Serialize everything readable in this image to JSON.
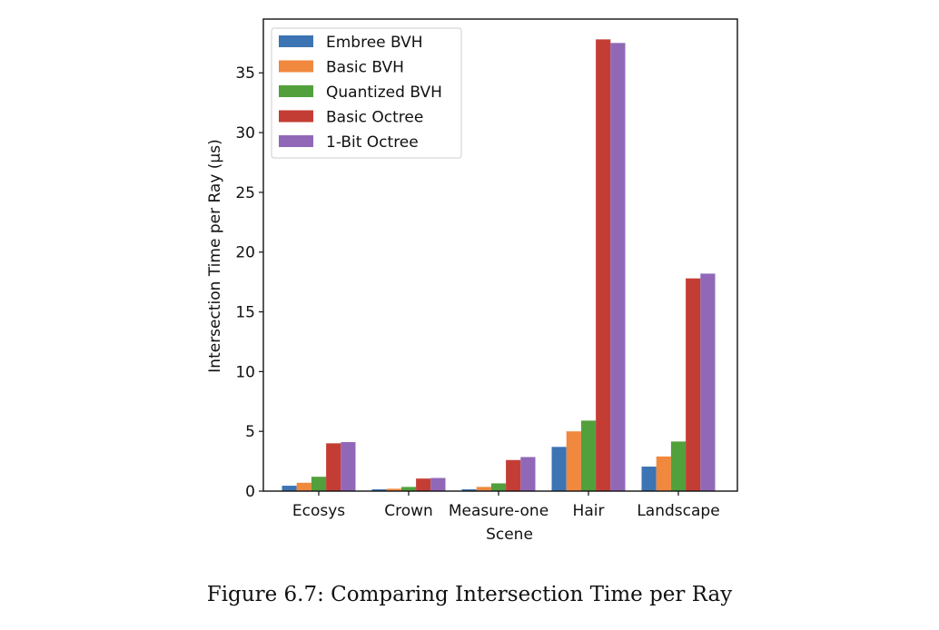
{
  "caption": "Figure 6.7: Comparing Intersection Time per Ray",
  "chart_data": {
    "type": "bar",
    "xlabel": "Scene",
    "ylabel": "Intersection Time per Ray (µs)",
    "categories": [
      "Ecosys",
      "Crown",
      "Measure-one",
      "Hair",
      "Landscape"
    ],
    "ylim": [
      0,
      39.5
    ],
    "yticks": [
      0,
      5,
      10,
      15,
      20,
      25,
      30,
      35
    ],
    "legend_position": "top-left",
    "grid": false,
    "series": [
      {
        "name": "Embree BVH",
        "color": "#3c74b4",
        "values": [
          0.45,
          0.15,
          0.15,
          3.7,
          2.05
        ]
      },
      {
        "name": "Basic BVH",
        "color": "#f0883e",
        "values": [
          0.7,
          0.2,
          0.35,
          5.0,
          2.9
        ]
      },
      {
        "name": "Quantized BVH",
        "color": "#52a03c",
        "values": [
          1.2,
          0.35,
          0.65,
          5.9,
          4.15
        ]
      },
      {
        "name": "Basic Octree",
        "color": "#c43d35",
        "values": [
          4.0,
          1.05,
          2.6,
          37.8,
          17.8
        ]
      },
      {
        "name": "1-Bit Octree",
        "color": "#9168b8",
        "values": [
          4.1,
          1.1,
          2.85,
          37.5,
          18.2
        ]
      }
    ]
  }
}
